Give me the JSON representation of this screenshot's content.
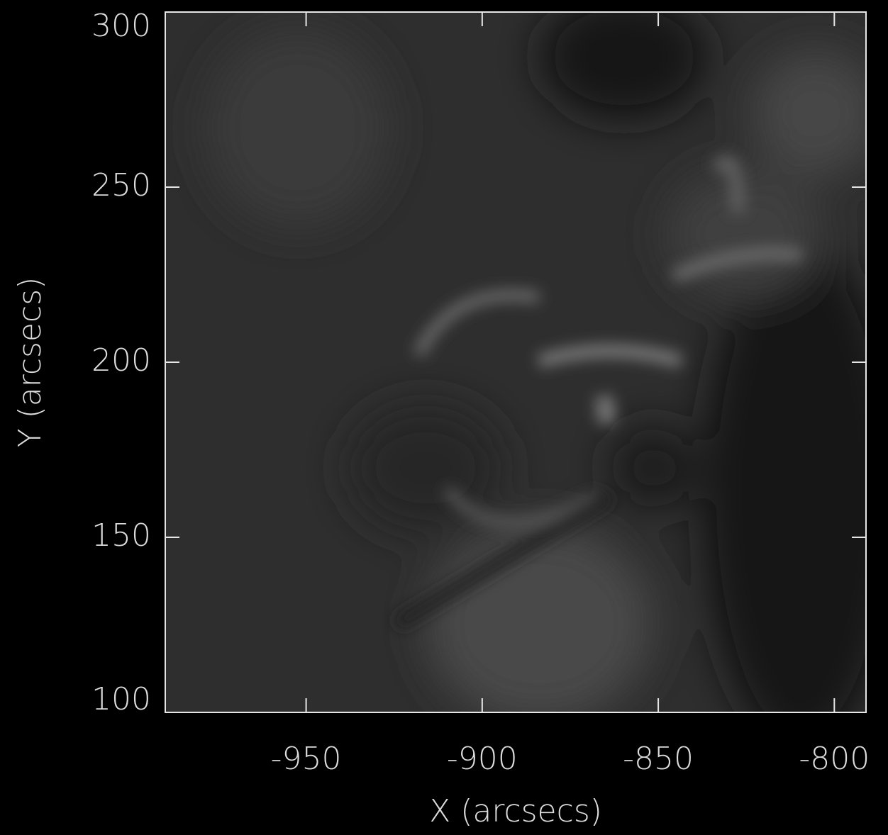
{
  "chart_data": {
    "type": "image",
    "xlabel": "X (arcsecs)",
    "ylabel": "Y (arcsecs)",
    "xlim": [
      -990,
      -791
    ],
    "ylim": [
      100,
      300
    ],
    "xticks": [
      -950,
      -900,
      -850,
      -800
    ],
    "yticks": [
      100,
      150,
      200,
      250,
      300
    ],
    "axis_color": "#e6e6e6"
  }
}
